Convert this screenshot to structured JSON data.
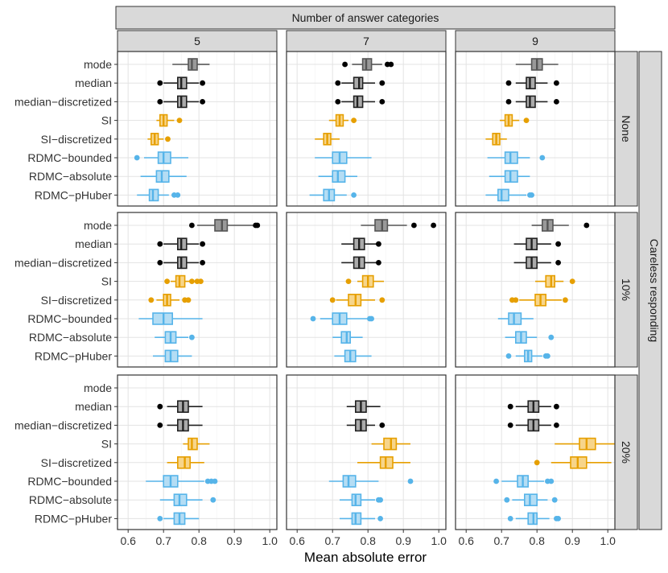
{
  "chart_data": {
    "type": "boxplot",
    "column_strip_title": "Number of answer categories",
    "column_facets": [
      "5",
      "7",
      "9"
    ],
    "row_strip_title": "Careless responding",
    "row_facets": [
      "None",
      "10%",
      "20%"
    ],
    "xlabel": "Mean absolute error",
    "xlim": [
      0.57,
      1.02
    ],
    "xticks": [
      0.6,
      0.7,
      0.8,
      0.9,
      1.0
    ],
    "xtick_labels": [
      "0.6",
      "0.7",
      "0.8",
      "0.9",
      "1.0"
    ],
    "methods": [
      "mode",
      "median",
      "median−discretized",
      "SI",
      "SI−discretized",
      "RDMC−bounded",
      "RDMC−absolute",
      "RDMC−pHuber"
    ],
    "method_colors": [
      "#555555",
      "#222222",
      "#222222",
      "#E69F00",
      "#E69F00",
      "#56B4E9",
      "#56B4E9",
      "#56B4E9"
    ],
    "method_fills": [
      "#999999",
      "#aaaaaa",
      "#aaaaaa",
      "#F7D58A",
      "#F7D58A",
      "#B4DDF4",
      "#B4DDF4",
      "#B4DDF4"
    ],
    "outlier_colors": [
      "#000000",
      "#000000",
      "#000000",
      "#E69F00",
      "#E69F00",
      "#56B4E9",
      "#56B4E9",
      "#56B4E9"
    ],
    "panels": [
      {
        "row": 0,
        "col": 0,
        "boxes": [
          [
            0.725,
            0.77,
            0.78,
            0.795,
            0.83,
            []
          ],
          [
            0.7,
            0.74,
            0.75,
            0.765,
            0.8,
            [
              0.69,
              0.81
            ]
          ],
          [
            0.7,
            0.74,
            0.75,
            0.765,
            0.8,
            [
              0.69,
              0.81
            ]
          ],
          [
            0.68,
            0.69,
            0.7,
            0.71,
            0.73,
            [
              0.745
            ]
          ],
          [
            0.655,
            0.665,
            0.675,
            0.685,
            0.7,
            [
              0.712
            ]
          ],
          [
            0.645,
            0.685,
            0.7,
            0.72,
            0.77,
            [
              0.625
            ]
          ],
          [
            0.635,
            0.68,
            0.695,
            0.715,
            0.765,
            []
          ],
          [
            0.625,
            0.66,
            0.67,
            0.685,
            0.715,
            [
              0.73,
              0.74
            ]
          ]
        ]
      },
      {
        "row": 0,
        "col": 1,
        "boxes": [
          [
            0.755,
            0.785,
            0.795,
            0.81,
            0.84,
            [
              0.735,
              0.855,
              0.865
            ]
          ],
          [
            0.725,
            0.76,
            0.775,
            0.785,
            0.82,
            [
              0.715,
              0.84
            ]
          ],
          [
            0.725,
            0.76,
            0.77,
            0.785,
            0.82,
            [
              0.715,
              0.84
            ]
          ],
          [
            0.69,
            0.71,
            0.72,
            0.73,
            0.745,
            [
              0.76
            ]
          ],
          [
            0.65,
            0.675,
            0.685,
            0.695,
            0.72,
            []
          ],
          [
            0.65,
            0.7,
            0.72,
            0.74,
            0.81,
            []
          ],
          [
            0.66,
            0.7,
            0.715,
            0.735,
            0.77,
            []
          ],
          [
            0.635,
            0.675,
            0.69,
            0.705,
            0.74,
            [
              0.76
            ]
          ]
        ]
      },
      {
        "row": 0,
        "col": 2,
        "boxes": [
          [
            0.74,
            0.785,
            0.8,
            0.815,
            0.86,
            []
          ],
          [
            0.74,
            0.77,
            0.78,
            0.795,
            0.83,
            [
              0.72,
              0.855
            ]
          ],
          [
            0.74,
            0.77,
            0.78,
            0.795,
            0.83,
            [
              0.72,
              0.855
            ]
          ],
          [
            0.695,
            0.71,
            0.72,
            0.73,
            0.75,
            [
              0.77
            ]
          ],
          [
            0.655,
            0.675,
            0.685,
            0.695,
            0.715,
            []
          ],
          [
            0.66,
            0.71,
            0.725,
            0.745,
            0.78,
            [
              0.815
            ]
          ],
          [
            0.665,
            0.71,
            0.725,
            0.745,
            0.78,
            []
          ],
          [
            0.655,
            0.69,
            0.7,
            0.72,
            0.77,
            [
              0.78,
              0.785
            ]
          ]
        ]
      },
      {
        "row": 1,
        "col": 0,
        "boxes": [
          [
            0.795,
            0.845,
            0.865,
            0.88,
            0.955,
            [
              0.78,
              0.96,
              0.965
            ]
          ],
          [
            0.7,
            0.74,
            0.75,
            0.765,
            0.8,
            [
              0.69,
              0.81
            ]
          ],
          [
            0.7,
            0.74,
            0.75,
            0.765,
            0.8,
            [
              0.69,
              0.81
            ]
          ],
          [
            0.72,
            0.735,
            0.745,
            0.76,
            0.79,
            [
              0.71,
              0.78,
              0.795,
              0.805
            ]
          ],
          [
            0.68,
            0.7,
            0.71,
            0.72,
            0.745,
            [
              0.665,
              0.76,
              0.77
            ]
          ],
          [
            0.63,
            0.67,
            0.7,
            0.725,
            0.81,
            []
          ],
          [
            0.675,
            0.705,
            0.72,
            0.735,
            0.77,
            [
              0.78
            ]
          ],
          [
            0.67,
            0.705,
            0.72,
            0.74,
            0.78,
            []
          ]
        ]
      },
      {
        "row": 1,
        "col": 1,
        "boxes": [
          [
            0.78,
            0.82,
            0.84,
            0.855,
            0.91,
            [
              0.93,
              0.985
            ]
          ],
          [
            0.725,
            0.76,
            0.775,
            0.79,
            0.825,
            [
              0.83
            ]
          ],
          [
            0.725,
            0.76,
            0.775,
            0.79,
            0.825,
            [
              0.83
            ]
          ],
          [
            0.77,
            0.785,
            0.8,
            0.815,
            0.845,
            [
              0.745
            ]
          ],
          [
            0.71,
            0.745,
            0.765,
            0.78,
            0.82,
            [
              0.7,
              0.84
            ]
          ],
          [
            0.665,
            0.7,
            0.72,
            0.74,
            0.8,
            [
              0.645,
              0.805,
              0.81
            ]
          ],
          [
            0.7,
            0.725,
            0.74,
            0.75,
            0.785,
            []
          ],
          [
            0.705,
            0.735,
            0.75,
            0.765,
            0.81,
            []
          ]
        ]
      },
      {
        "row": 1,
        "col": 2,
        "boxes": [
          [
            0.785,
            0.815,
            0.83,
            0.845,
            0.89,
            [
              0.94
            ]
          ],
          [
            0.735,
            0.77,
            0.785,
            0.8,
            0.84,
            [
              0.86
            ]
          ],
          [
            0.735,
            0.77,
            0.785,
            0.8,
            0.84,
            [
              0.86
            ]
          ],
          [
            0.795,
            0.825,
            0.84,
            0.85,
            0.875,
            [
              0.9
            ]
          ],
          [
            0.75,
            0.795,
            0.81,
            0.825,
            0.87,
            [
              0.73,
              0.74,
              0.88
            ]
          ],
          [
            0.69,
            0.72,
            0.735,
            0.755,
            0.79,
            []
          ],
          [
            0.71,
            0.74,
            0.755,
            0.77,
            0.8,
            [
              0.84
            ]
          ],
          [
            0.74,
            0.765,
            0.775,
            0.785,
            0.815,
            [
              0.72,
              0.825,
              0.83
            ]
          ]
        ]
      },
      {
        "row": 2,
        "col": 0,
        "boxes": [
          null,
          [
            0.71,
            0.74,
            0.755,
            0.77,
            0.81,
            [
              0.69
            ]
          ],
          [
            0.71,
            0.74,
            0.755,
            0.77,
            0.81,
            [
              0.69
            ]
          ],
          [
            0.755,
            0.77,
            0.78,
            0.795,
            0.83,
            []
          ],
          [
            0.71,
            0.74,
            0.76,
            0.775,
            0.815,
            []
          ],
          [
            0.65,
            0.7,
            0.72,
            0.74,
            0.815,
            [
              0.825,
              0.835,
              0.845
            ]
          ],
          [
            0.69,
            0.73,
            0.745,
            0.765,
            0.81,
            [
              0.84
            ]
          ],
          [
            0.7,
            0.73,
            0.745,
            0.76,
            0.8,
            [
              0.69
            ]
          ]
        ]
      },
      {
        "row": 2,
        "col": 1,
        "boxes": [
          null,
          [
            0.74,
            0.765,
            0.78,
            0.795,
            0.835,
            []
          ],
          [
            0.74,
            0.765,
            0.78,
            0.795,
            0.82,
            [
              0.84
            ]
          ],
          [
            0.81,
            0.845,
            0.865,
            0.88,
            0.92,
            []
          ],
          [
            0.77,
            0.835,
            0.85,
            0.87,
            0.92,
            []
          ],
          [
            0.69,
            0.73,
            0.745,
            0.765,
            0.83,
            [
              0.92
            ]
          ],
          [
            0.72,
            0.755,
            0.765,
            0.78,
            0.82,
            [
              0.83,
              0.835
            ]
          ],
          [
            0.72,
            0.755,
            0.765,
            0.78,
            0.82,
            [
              0.835
            ]
          ]
        ]
      },
      {
        "row": 2,
        "col": 2,
        "boxes": [
          null,
          [
            0.74,
            0.775,
            0.79,
            0.805,
            0.84,
            [
              0.725,
              0.855
            ]
          ],
          [
            0.74,
            0.775,
            0.79,
            0.805,
            0.84,
            [
              0.725,
              0.855
            ]
          ],
          [
            0.85,
            0.92,
            0.94,
            0.965,
            1.02,
            []
          ],
          [
            0.84,
            0.895,
            0.915,
            0.94,
            1.01,
            [
              0.8
            ]
          ],
          [
            0.7,
            0.745,
            0.76,
            0.775,
            0.82,
            [
              0.685,
              0.83,
              0.84
            ]
          ],
          [
            0.73,
            0.765,
            0.78,
            0.8,
            0.83,
            [
              0.715,
              0.85
            ]
          ],
          [
            0.74,
            0.775,
            0.79,
            0.8,
            0.835,
            [
              0.725,
              0.855,
              0.86
            ]
          ]
        ]
      }
    ]
  }
}
